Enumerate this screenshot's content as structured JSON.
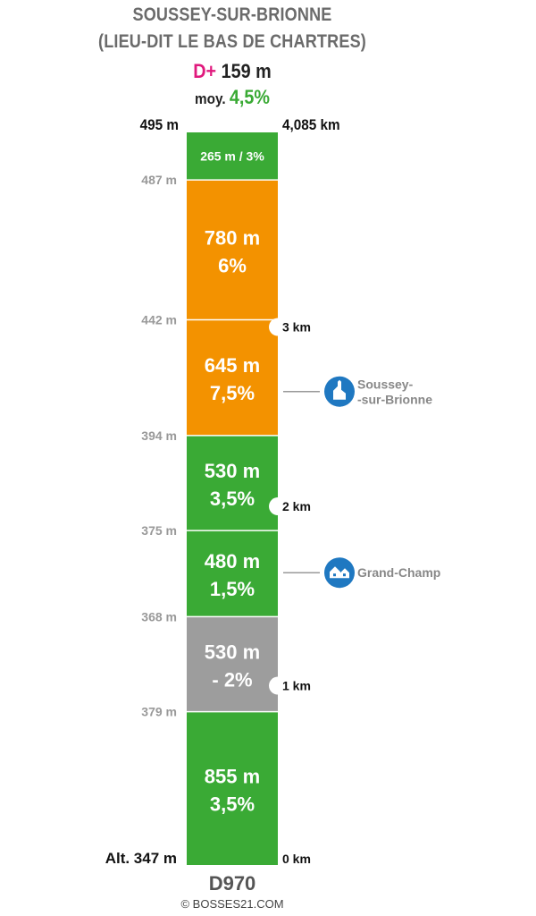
{
  "title_line1": "SOUSSEY-SUR-BRIONNE",
  "title_line2": "(LIEU-DIT LE BAS DE CHARTRES)",
  "dplus_label": "D+",
  "dplus_value": "159 m",
  "avg_label": "moy.",
  "avg_value": "4,5%",
  "top_altitude": "495 m",
  "top_distance": "4,085 km",
  "road": "D970",
  "copyright": "© BOSSES21.COM",
  "colors": {
    "green": "#3aaa35",
    "orange": "#f39200",
    "grey": "#9d9d9d",
    "blue": "#1f78c1",
    "marker": "#999999"
  },
  "chart_data": {
    "type": "bar",
    "orientation": "vertical-stack",
    "segments": [
      {
        "length": "855 m",
        "grade": "3,5%",
        "length_m": 855,
        "grade_pct": 3.5,
        "color": "green"
      },
      {
        "length": "530 m",
        "grade": "- 2%",
        "length_m": 530,
        "grade_pct": -2,
        "color": "grey"
      },
      {
        "length": "480 m",
        "grade": "1,5%",
        "length_m": 480,
        "grade_pct": 1.5,
        "color": "green"
      },
      {
        "length": "530 m",
        "grade": "3,5%",
        "length_m": 530,
        "grade_pct": 3.5,
        "color": "green"
      },
      {
        "length": "645 m",
        "grade": "7,5%",
        "length_m": 645,
        "grade_pct": 7.5,
        "color": "orange"
      },
      {
        "length": "780 m",
        "grade": "6%",
        "length_m": 780,
        "grade_pct": 6,
        "color": "orange"
      },
      {
        "label": "265 m / 3%",
        "length_m": 265,
        "grade_pct": 3,
        "color": "green"
      }
    ],
    "altitudes": [
      "Alt. 347 m",
      "379 m",
      "368 m",
      "375 m",
      "394 m",
      "442 m",
      "487 m"
    ],
    "km_markers": [
      {
        "label": "0 km",
        "km": 0
      },
      {
        "label": "1 km",
        "km": 1
      },
      {
        "label": "2 km",
        "km": 2
      },
      {
        "label": "3 km",
        "km": 3
      }
    ],
    "places": [
      {
        "name_lines": [
          "Grand-Champ"
        ],
        "km": 1.63,
        "icon": "houses-icon"
      },
      {
        "name_lines": [
          "Soussey-",
          "-sur-Brionne"
        ],
        "km": 2.64,
        "icon": "church-icon"
      }
    ],
    "total_km": 4.085
  }
}
